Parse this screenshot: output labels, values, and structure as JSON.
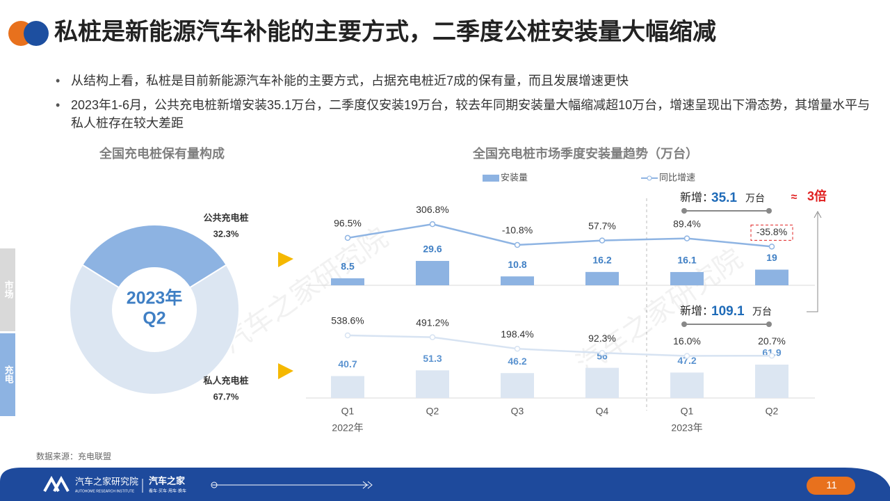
{
  "header": {
    "title": "私桩是新能源汽车补能的主要方式，二季度公桩安装量大幅缩减"
  },
  "bullets": [
    "从结构上看，私桩是目前新能源汽车补能的主要方式，占据充电桩近7成的保有量，而且发展增速更快",
    "2023年1-6月，公共充电桩新增安装35.1万台，二季度仅安装19万台，较去年同期安装量大幅缩减超10万台，增速呈现出下滑态势，其增量水平与私人桩存在较大差距"
  ],
  "side_labels": [
    "市场",
    "充电"
  ],
  "watermark": "汽车之家研究院",
  "chart_data": [
    {
      "type": "donut",
      "title": "全国充电桩保有量构成",
      "center_label": [
        "2023年",
        "Q2"
      ],
      "categories": [
        "公共充电桩",
        "私人充电桩"
      ],
      "values": [
        32.3,
        67.7
      ],
      "value_labels": [
        "32.3%",
        "67.7%"
      ],
      "colors": [
        "#8db3e2",
        "#dce6f2"
      ]
    },
    {
      "type": "bar_line",
      "title": "全国充电桩市场季度安装量趋势（万台）",
      "categories": [
        "Q1",
        "Q2",
        "Q3",
        "Q4",
        "Q1",
        "Q2"
      ],
      "groups": [
        {
          "label": "2022年",
          "index": 0
        },
        {
          "label": "2023年",
          "index": 4
        }
      ],
      "series": [
        {
          "name": "安装量",
          "color": "#8db3e2"
        },
        {
          "name": "同比增速",
          "color": "#8eb4e3"
        }
      ],
      "panels": [
        {
          "ylim": [
            0,
            60
          ],
          "y2lim": [
            -100,
            400
          ],
          "bars": {
            "values": [
              8.5,
              29.6,
              10.8,
              16.2,
              16.1,
              19
            ],
            "color": "#8db3e2",
            "label_color": "#3f7fc4"
          },
          "line": {
            "values": [
              96.5,
              306.8,
              -10.8,
              57.7,
              89.4,
              -35.8
            ],
            "value_labels": [
              "96.5%",
              "306.8%",
              "-10.8%",
              "57.7%",
              "89.4%",
              "-35.8%"
            ],
            "color": "#8eb4e3"
          },
          "highlight_index": 5,
          "annotation": {
            "prefix": "新增：",
            "value": 35.1,
            "unit": "万台"
          }
        },
        {
          "ylim": [
            0,
            80
          ],
          "y2lim": [
            0,
            600
          ],
          "bars": {
            "values": [
              40.7,
              51.3,
              46.2,
              56,
              47.2,
              61.9
            ],
            "color": "#dce6f2",
            "label_color": "#5b93d0"
          },
          "line": {
            "values": [
              538.6,
              491.2,
              198.4,
              92.3,
              16.0,
              20.7
            ],
            "value_labels": [
              "538.6%",
              "491.2%",
              "198.4%",
              "92.3%",
              "16.0%",
              "20.7%"
            ],
            "color": "#d7e3f2"
          },
          "annotation": {
            "prefix": "新增：",
            "value": 109.1,
            "unit": "万台"
          }
        }
      ],
      "comparison": {
        "symbol": "≈",
        "text": "3倍"
      }
    }
  ],
  "footer": {
    "source": "数据来源：充电联盟",
    "brand": "汽车之家研究院",
    "brand_en": "AUTOHOME RESEARCH INSTITUTE",
    "brand2": "汽车之家",
    "slogan": "看车·买车·用车·换车",
    "page": 11
  }
}
